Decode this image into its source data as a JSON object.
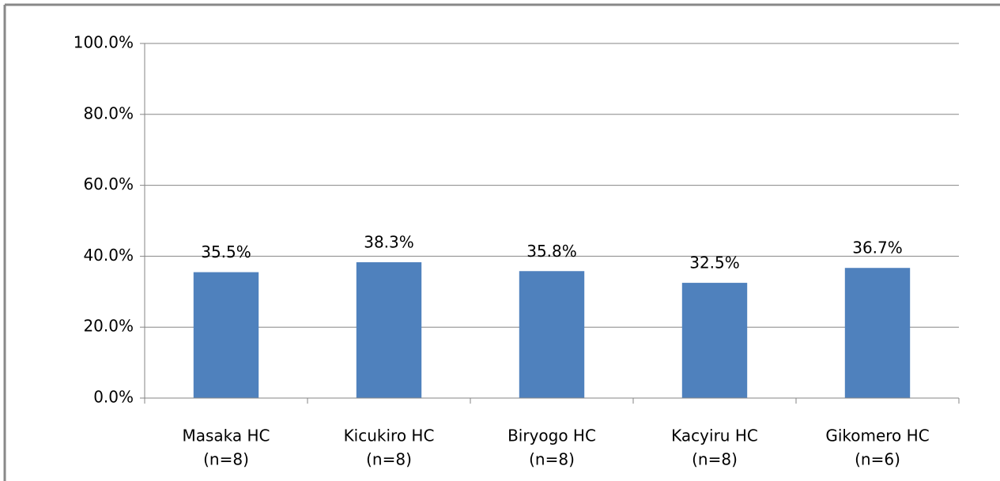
{
  "chart_data": {
    "type": "bar",
    "categories": [
      [
        "Masaka HC",
        "(n=8)"
      ],
      [
        "Kicukiro HC",
        "(n=8)"
      ],
      [
        "Biryogo HC",
        "(n=8)"
      ],
      [
        "Kacyiru HC",
        "(n=8)"
      ],
      [
        "Gikomero HC",
        "(n=6)"
      ]
    ],
    "values": [
      35.5,
      38.3,
      35.8,
      32.5,
      36.7
    ],
    "value_labels": [
      "35.5%",
      "38.3%",
      "35.8%",
      "32.5%",
      "36.7%"
    ],
    "color": "#4f81bd",
    "ylim": [
      0,
      100
    ],
    "yticks": [
      {
        "value": 0,
        "label": "0.0%"
      },
      {
        "value": 20,
        "label": "20.0%"
      },
      {
        "value": 40,
        "label": "40.0%"
      },
      {
        "value": 60,
        "label": "60.0%"
      },
      {
        "value": 80,
        "label": "80.0%"
      },
      {
        "value": 100,
        "label": "100.0%"
      }
    ],
    "grid": true
  }
}
